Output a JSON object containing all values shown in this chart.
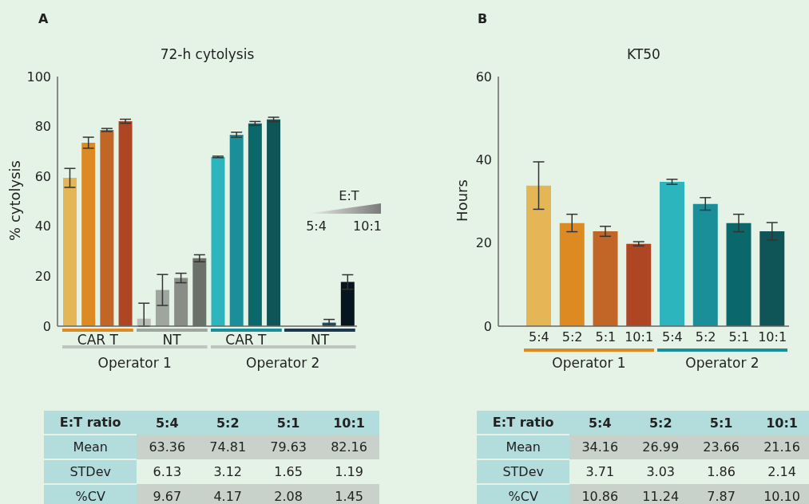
{
  "chart_data": [
    {
      "type": "bar",
      "title": "72-h cytolysis",
      "ylabel": "% cytolysis",
      "categories": [
        null,
        null,
        null,
        null,
        null,
        null,
        null,
        null,
        null,
        null,
        null,
        null,
        null,
        null,
        null,
        null
      ],
      "values": [
        59.4,
        73.5,
        78.6,
        82.1,
        3.0,
        14.5,
        19.3,
        27.2,
        67.8,
        76.7,
        81.2,
        82.8,
        null,
        null,
        1.4,
        17.7
      ],
      "colors": [
        "#e4b656",
        "#dd8a22",
        "#c16627",
        "#ae4623",
        "#b8bdb4",
        "#9fa69e",
        "#888d86",
        "#6c706a",
        "#2db5bd",
        "#1a8f99",
        "#0a686b",
        "#0f5558",
        "#1b3a4f",
        "#1b3a4f",
        "#1b4a6b",
        "#07151f"
      ],
      "errors": [
        3.8,
        2.2,
        0.6,
        0.8,
        [
          0,
          9.2
        ],
        6.2,
        1.9,
        1.4,
        0.3,
        1.0,
        0.8,
        0.9,
        null,
        null,
        1.3,
        2.9
      ],
      "ylim": [
        0,
        100
      ],
      "yticks": [
        0,
        20,
        40,
        60,
        80,
        100
      ],
      "annotations": [
        "CAR T",
        "NT",
        "CAR T",
        "NT",
        "Operator 1",
        "Operator 2",
        "E:T",
        "5:4",
        "10:1",
        "A"
      ]
    },
    {
      "type": "bar",
      "title": "KT50",
      "ylabel": "Hours",
      "categories": [
        "5:4",
        "5:2",
        "5:1",
        "10:1",
        "5:4",
        "5:2",
        "5:1",
        "10:1"
      ],
      "values": [
        33.8,
        24.8,
        22.8,
        19.8,
        34.7,
        29.4,
        24.8,
        22.8
      ],
      "colors": [
        "#e4b656",
        "#dd8a22",
        "#c16627",
        "#ae4623",
        "#2db5bd",
        "#1a8f99",
        "#0a686b",
        "#0f5558"
      ],
      "errors": [
        5.7,
        2.1,
        1.2,
        0.5,
        0.6,
        1.5,
        2.1,
        2.1
      ],
      "ylim": [
        0,
        60
      ],
      "yticks": [
        0,
        20,
        40,
        60
      ],
      "annotations": [
        "Operator 1",
        "Operator 2",
        "B"
      ]
    },
    {
      "type": "other",
      "ylabel": "E:T ratio",
      "categories": [
        "5:4",
        "5:2",
        "5:1",
        "10:1"
      ],
      "y_categories": [
        "Mean",
        "STDev",
        "%CV"
      ],
      "cell_labels": [
        [
          "63.36",
          "74.81",
          "79.63",
          "82.16"
        ],
        [
          "6.13",
          "3.12",
          "1.65",
          "1.19"
        ],
        [
          "9.67",
          "4.17",
          "2.08",
          "1.45"
        ]
      ]
    },
    {
      "type": "other",
      "ylabel": "E:T ratio",
      "categories": [
        "5:4",
        "5:2",
        "5:1",
        "10:1"
      ],
      "y_categories": [
        "Mean",
        "STDev",
        "%CV"
      ],
      "cell_labels": [
        [
          "34.16",
          "26.99",
          "23.66",
          "21.16"
        ],
        [
          "3.71",
          "3.03",
          "1.86",
          "2.14"
        ],
        [
          "10.86",
          "11.24",
          "7.87",
          "10.10"
        ]
      ]
    }
  ]
}
